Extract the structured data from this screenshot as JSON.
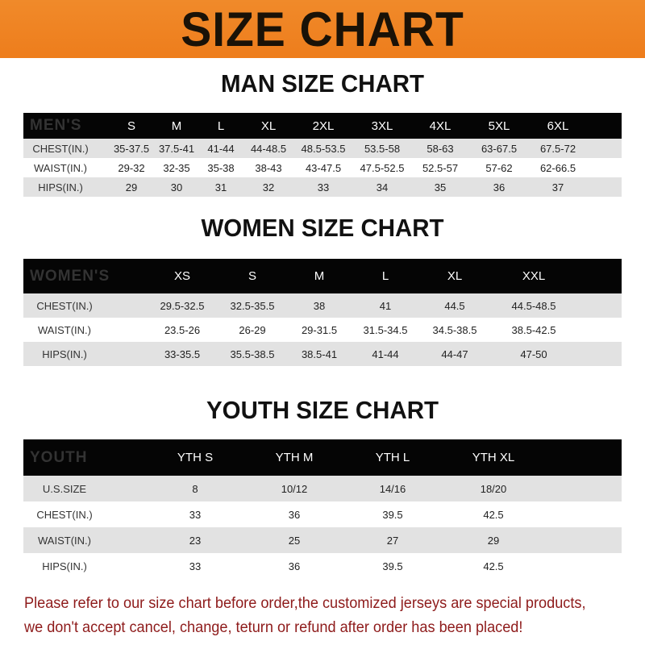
{
  "banner": {
    "title": "SIZE CHART",
    "color": "#ee7d1c"
  },
  "men": {
    "title": "MAN SIZE CHART",
    "header": [
      "MEN'S",
      "S",
      "M",
      "L",
      "XL",
      "2XL",
      "3XL",
      "4XL",
      "5XL",
      "6XL"
    ],
    "rows": [
      [
        "CHEST(IN.)",
        "35-37.5",
        "37.5-41",
        "41-44",
        "44-48.5",
        "48.5-53.5",
        "53.5-58",
        "58-63",
        "63-67.5",
        "67.5-72"
      ],
      [
        "WAIST(IN.)",
        "29-32",
        "32-35",
        "35-38",
        "38-43",
        "43-47.5",
        "47.5-52.5",
        "52.5-57",
        "57-62",
        "62-66.5"
      ],
      [
        "HIPS(IN.)",
        "29",
        "30",
        "31",
        "32",
        "33",
        "34",
        "35",
        "36",
        "37"
      ]
    ]
  },
  "women": {
    "title": "WOMEN SIZE CHART",
    "header": [
      "WOMEN'S",
      "XS",
      "S",
      "M",
      "L",
      "XL",
      "XXL"
    ],
    "rows": [
      [
        "CHEST(IN.)",
        "29.5-32.5",
        "32.5-35.5",
        "38",
        "41",
        "44.5",
        "44.5-48.5"
      ],
      [
        "WAIST(IN.)",
        "23.5-26",
        "26-29",
        "29-31.5",
        "31.5-34.5",
        "34.5-38.5",
        "38.5-42.5"
      ],
      [
        "HIPS(IN.)",
        "33-35.5",
        "35.5-38.5",
        "38.5-41",
        "41-44",
        "44-47",
        "47-50"
      ]
    ]
  },
  "youth": {
    "title": "YOUTH SIZE CHART",
    "header": [
      "YOUTH",
      "YTH S",
      "YTH M",
      "YTH L",
      "YTH XL"
    ],
    "rows": [
      [
        "U.S.SIZE",
        "8",
        "10/12",
        "14/16",
        "18/20"
      ],
      [
        "CHEST(IN.)",
        "33",
        "36",
        "39.5",
        "42.5"
      ],
      [
        "WAIST(IN.)",
        "23",
        "25",
        "27",
        "29"
      ],
      [
        "HIPS(IN.)",
        "33",
        "36",
        "39.5",
        "42.5"
      ]
    ]
  },
  "footer": {
    "line1": "Please refer to our size chart before order,the customized jerseys are special products,",
    "line2": "we don't accept cancel, change, teturn or refund after order has been placed!",
    "color": "#8e1b1b"
  }
}
